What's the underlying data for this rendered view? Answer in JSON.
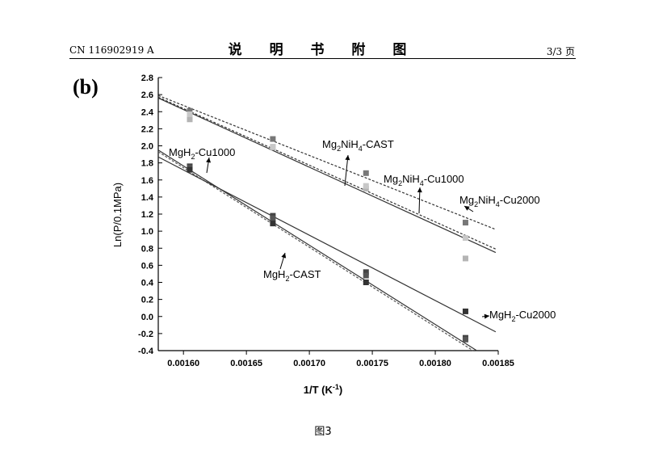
{
  "header": {
    "patent_number": "CN 116902919 A",
    "section_title": "说 明 书 附 图",
    "page": "3/3 页"
  },
  "caption": "图3",
  "chart_data": {
    "type": "scatter",
    "panel_label": "(b)",
    "xlabel": "1/T (K",
    "xlabel_sup": "-1",
    "xlabel_close": ")",
    "ylabel": "Ln(P/0.1MPa)",
    "xlim": [
      0.00158,
      0.00185
    ],
    "ylim": [
      -0.4,
      2.8
    ],
    "x_ticks": [
      "0.00160",
      "0.00165",
      "0.00170",
      "0.00175",
      "0.00180",
      "0.00185"
    ],
    "y_ticks": [
      "-0.4",
      "-0.2",
      "0.0",
      "0.2",
      "0.4",
      "0.6",
      "0.8",
      "1.0",
      "1.2",
      "1.4",
      "1.6",
      "1.8",
      "2.0",
      "2.2",
      "2.4",
      "2.6",
      "2.8"
    ],
    "grid": false,
    "series": [
      {
        "name": "Mg2NiH4-CAST",
        "label_main": "Mg",
        "label_sub1": "2",
        "label_mid": "NiH",
        "label_sub2": "4",
        "label_end": "-CAST",
        "line_style": "solid",
        "color": "#333333",
        "marker_color": "#777777",
        "x": [
          0.001605,
          0.001671,
          0.001745,
          0.001824
        ],
        "y": [
          2.41,
          2.08,
          1.68,
          1.1
        ],
        "fit": [
          [
            0.00158,
            2.56
          ],
          [
            0.001848,
            0.75
          ]
        ]
      },
      {
        "name": "Mg2NiH4-Cu1000",
        "label_main": "Mg",
        "label_sub1": "2",
        "label_mid": "NiH",
        "label_sub2": "4",
        "label_end": "-Cu1000",
        "line_style": "dashed",
        "color": "#333333",
        "marker_color": "#b4b4b4",
        "x": [
          0.001605,
          0.001671,
          0.001745,
          0.001824
        ],
        "y": [
          2.31,
          1.98,
          1.5,
          0.68
        ],
        "fit": [
          [
            0.00158,
            2.57
          ],
          [
            0.001848,
            0.79
          ]
        ]
      },
      {
        "name": "Mg2NiH4-Cu2000",
        "label_main": "Mg",
        "label_sub1": "2",
        "label_mid": "NiH",
        "label_sub2": "4",
        "label_end": "-Cu2000",
        "line_style": "dashed",
        "color": "#333333",
        "marker_color": "#c8c8c8",
        "x": [
          0.001605,
          0.001671,
          0.001745,
          0.001824
        ],
        "y": [
          2.37,
          1.99,
          1.53,
          0.92
        ],
        "fit": [
          [
            0.00158,
            2.59
          ],
          [
            0.001848,
            1.02
          ]
        ]
      },
      {
        "name": "MgH2-CAST",
        "label_main": "MgH",
        "label_sub1": "2",
        "label_mid": "",
        "label_sub2": "",
        "label_end": "-CAST",
        "line_style": "solid",
        "color": "#333333",
        "marker_color": "#444444",
        "x": [
          0.001605,
          0.001671,
          0.001745,
          0.001824
        ],
        "y": [
          1.76,
          1.18,
          0.52,
          -0.25
        ],
        "fit": [
          [
            0.00158,
            1.95
          ],
          [
            0.001833,
            -0.4
          ]
        ]
      },
      {
        "name": "MgH2-Cu1000",
        "label_main": "MgH",
        "label_sub1": "2",
        "label_mid": "",
        "label_sub2": "",
        "label_end": "-Cu1000",
        "line_style": "dashed",
        "color": "#555555",
        "marker_color": "#555555",
        "x": [
          0.001605,
          0.001671,
          0.001745,
          0.001824
        ],
        "y": [
          1.74,
          1.15,
          0.48,
          -0.27
        ],
        "fit": [
          [
            0.00158,
            1.93
          ],
          [
            0.00183,
            -0.4
          ]
        ]
      },
      {
        "name": "MgH2-Cu2000",
        "label_main": "MgH",
        "label_sub1": "2",
        "label_mid": "",
        "label_sub2": "",
        "label_end": "-Cu2000",
        "line_style": "solid",
        "color": "#333333",
        "marker_color": "#333333",
        "x": [
          0.001605,
          0.001671,
          0.001745,
          0.001824
        ],
        "y": [
          1.72,
          1.09,
          0.4,
          0.06
        ],
        "fit": [
          [
            0.00158,
            1.87
          ],
          [
            0.001848,
            -0.18
          ]
        ]
      }
    ]
  }
}
